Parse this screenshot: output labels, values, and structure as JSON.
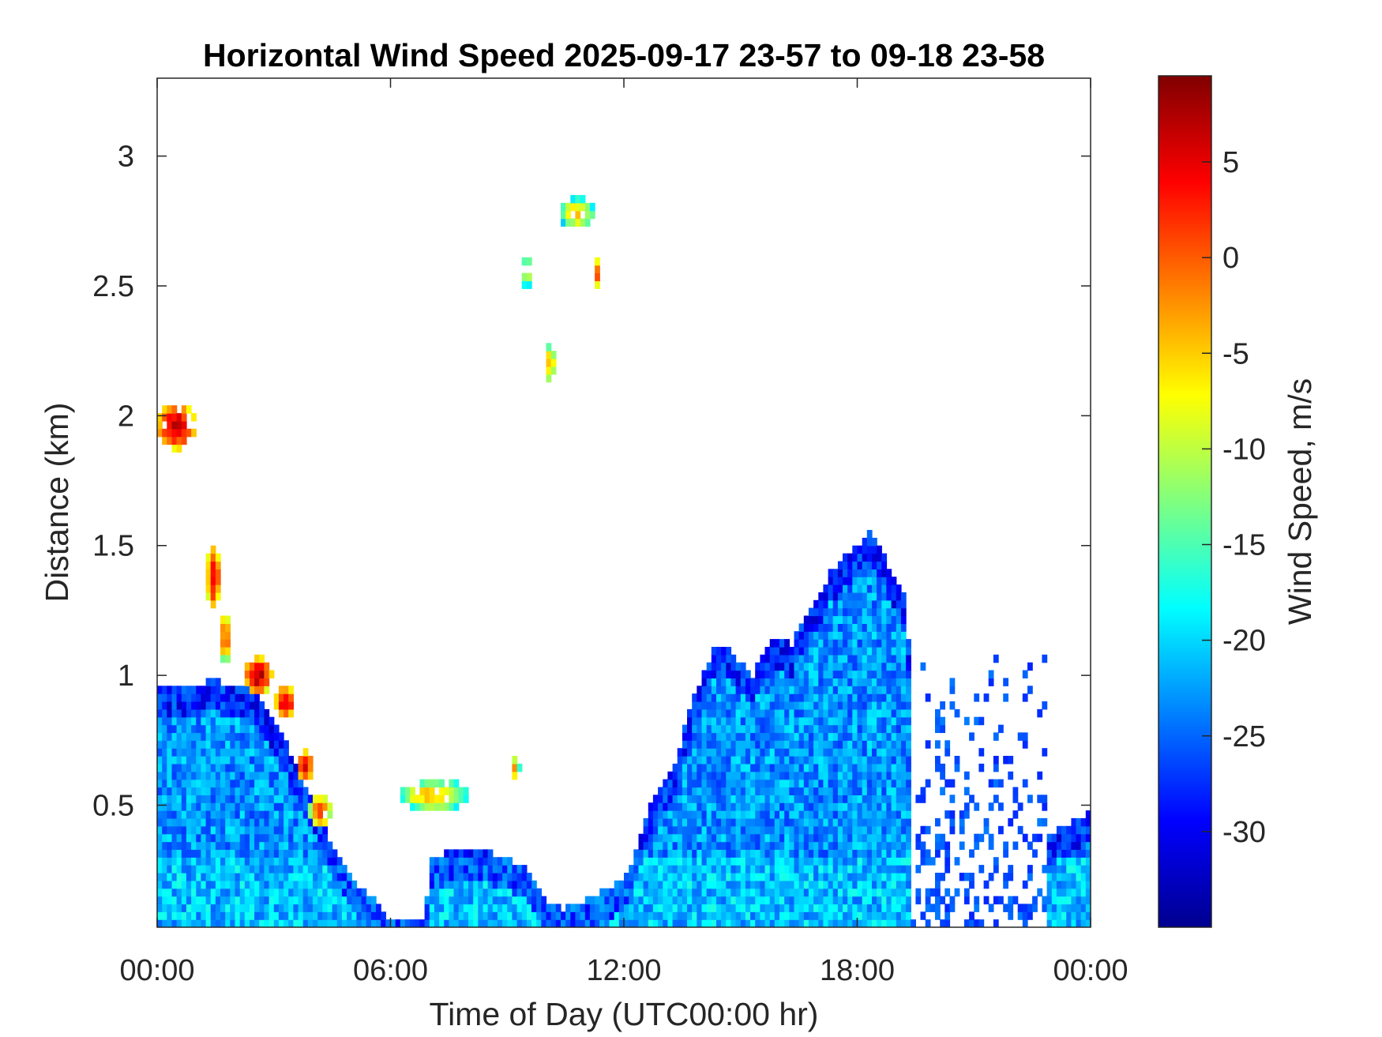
{
  "chart_data": {
    "type": "heatmap",
    "title": "Horizontal Wind Speed 2025-09-17 23-57 to 09-18 23-58",
    "xlabel": "Time of Day (UTC00:00 hr)",
    "ylabel": "Distance (km)",
    "colorbar_label": "Wind Speed, m/s",
    "colormap": "jet",
    "xlim": [
      0,
      24
    ],
    "ylim": [
      0.03,
      3.3
    ],
    "clim": [
      -35,
      9.5
    ],
    "x_ticks": [
      {
        "value": 0,
        "label": "00:00"
      },
      {
        "value": 6,
        "label": "06:00"
      },
      {
        "value": 12,
        "label": "12:00"
      },
      {
        "value": 18,
        "label": "18:00"
      },
      {
        "value": 24,
        "label": "00:00"
      }
    ],
    "y_ticks": [
      {
        "value": 0.5,
        "label": "0.5"
      },
      {
        "value": 1,
        "label": "1"
      },
      {
        "value": 1.5,
        "label": "1.5"
      },
      {
        "value": 2,
        "label": "2"
      },
      {
        "value": 2.5,
        "label": "2.5"
      },
      {
        "value": 3,
        "label": "3"
      }
    ],
    "colorbar_ticks": [
      {
        "value": 5,
        "label": "5"
      },
      {
        "value": 0,
        "label": "0"
      },
      {
        "value": -5,
        "label": "-5"
      },
      {
        "value": -10,
        "label": "-10"
      },
      {
        "value": -15,
        "label": "-15"
      },
      {
        "value": -20,
        "label": "-20"
      },
      {
        "value": -25,
        "label": "-25"
      },
      {
        "value": -30,
        "label": "-30"
      }
    ],
    "grid": false,
    "low_layer_top_km": [
      [
        0.0,
        0.95
      ],
      [
        0.5,
        0.95
      ],
      [
        1.0,
        0.95
      ],
      [
        1.3,
        0.98
      ],
      [
        1.6,
        0.98
      ],
      [
        2.0,
        0.95
      ],
      [
        2.4,
        0.95
      ],
      [
        2.7,
        0.9
      ],
      [
        3.0,
        0.82
      ],
      [
        3.3,
        0.74
      ],
      [
        3.6,
        0.65
      ],
      [
        3.9,
        0.55
      ],
      [
        4.2,
        0.45
      ],
      [
        4.5,
        0.35
      ],
      [
        4.8,
        0.28
      ],
      [
        5.1,
        0.2
      ],
      [
        5.5,
        0.15
      ],
      [
        5.8,
        0.1
      ],
      [
        6.0,
        0.05
      ],
      [
        6.9,
        0.05
      ],
      [
        7.0,
        0.3
      ],
      [
        7.5,
        0.32
      ],
      [
        8.0,
        0.34
      ],
      [
        8.5,
        0.32
      ],
      [
        9.0,
        0.3
      ],
      [
        9.5,
        0.25
      ],
      [
        10.0,
        0.12
      ],
      [
        10.5,
        0.1
      ],
      [
        11.0,
        0.14
      ],
      [
        11.5,
        0.17
      ],
      [
        12.0,
        0.22
      ],
      [
        12.3,
        0.32
      ],
      [
        12.6,
        0.48
      ],
      [
        13.0,
        0.6
      ],
      [
        13.3,
        0.65
      ],
      [
        13.6,
        0.82
      ],
      [
        14.0,
        1.0
      ],
      [
        14.3,
        1.1
      ],
      [
        14.6,
        1.12
      ],
      [
        15.0,
        1.05
      ],
      [
        15.3,
        1.0
      ],
      [
        15.6,
        1.1
      ],
      [
        16.0,
        1.15
      ],
      [
        16.3,
        1.12
      ],
      [
        16.6,
        1.2
      ],
      [
        17.0,
        1.3
      ],
      [
        17.3,
        1.4
      ],
      [
        17.6,
        1.45
      ],
      [
        18.0,
        1.5
      ],
      [
        18.3,
        1.55
      ],
      [
        18.6,
        1.5
      ],
      [
        19.0,
        1.35
      ],
      [
        19.3,
        1.28
      ],
      [
        19.4,
        0.05
      ],
      [
        22.8,
        0.05
      ],
      [
        22.9,
        0.38
      ],
      [
        23.3,
        0.42
      ],
      [
        23.7,
        0.46
      ],
      [
        24.0,
        0.47
      ]
    ],
    "cloud_features": [
      {
        "x": 0.5,
        "y": 1.96,
        "dx": 0.55,
        "dy": 0.09,
        "value": 6
      },
      {
        "x": 1.45,
        "y": 1.38,
        "dx": 0.18,
        "dy": 0.12,
        "value": 5
      },
      {
        "x": 1.75,
        "y": 1.15,
        "dx": 0.12,
        "dy": 0.1,
        "value": 2
      },
      {
        "x": 2.6,
        "y": 1.0,
        "dx": 0.35,
        "dy": 0.07,
        "value": 7
      },
      {
        "x": 3.3,
        "y": 0.9,
        "dx": 0.25,
        "dy": 0.06,
        "value": 6
      },
      {
        "x": 3.8,
        "y": 0.65,
        "dx": 0.25,
        "dy": 0.06,
        "value": 4
      },
      {
        "x": 4.2,
        "y": 0.48,
        "dx": 0.3,
        "dy": 0.07,
        "value": 0
      },
      {
        "x": 7.1,
        "y": 0.54,
        "dx": 0.9,
        "dy": 0.06,
        "value": -4
      },
      {
        "x": 9.2,
        "y": 0.64,
        "dx": 0.12,
        "dy": 0.05,
        "value": -2
      },
      {
        "x": 9.5,
        "y": 2.56,
        "dx": 0.12,
        "dy": 0.07,
        "value": -6
      },
      {
        "x": 10.1,
        "y": 2.2,
        "dx": 0.15,
        "dy": 0.07,
        "value": -3
      },
      {
        "x": 10.8,
        "y": 2.78,
        "dx": 0.45,
        "dy": 0.06,
        "value": -5
      },
      {
        "x": 11.3,
        "y": 2.55,
        "dx": 0.1,
        "dy": 0.06,
        "value": 2
      }
    ]
  }
}
